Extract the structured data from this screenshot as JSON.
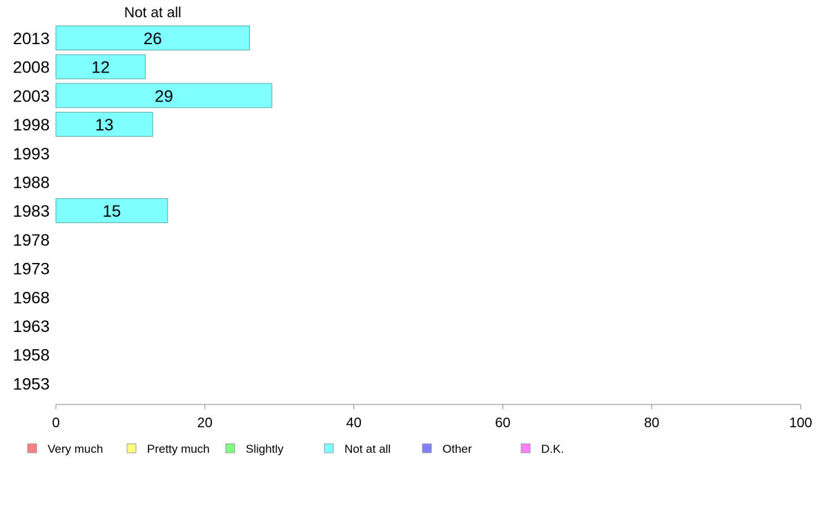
{
  "chart_data": {
    "type": "bar",
    "orientation": "horizontal",
    "stacked": true,
    "column_header": "Not at all",
    "categories": [
      "2013",
      "2008",
      "2003",
      "1998",
      "1993",
      "1988",
      "1983",
      "1978",
      "1973",
      "1968",
      "1963",
      "1958",
      "1953"
    ],
    "series": [
      {
        "name": "Very much",
        "color": "#ff8080",
        "values": [
          null,
          null,
          null,
          null,
          null,
          null,
          null,
          null,
          null,
          null,
          null,
          null,
          null
        ]
      },
      {
        "name": "Pretty much",
        "color": "#ffff80",
        "values": [
          null,
          null,
          null,
          null,
          null,
          null,
          null,
          null,
          null,
          null,
          null,
          null,
          null
        ]
      },
      {
        "name": "Slightly",
        "color": "#80ff80",
        "values": [
          null,
          null,
          null,
          null,
          null,
          null,
          null,
          null,
          null,
          null,
          null,
          null,
          null
        ]
      },
      {
        "name": "Not at all",
        "color": "#80ffff",
        "values": [
          26,
          12,
          29,
          13,
          null,
          null,
          15,
          null,
          null,
          null,
          null,
          null,
          null
        ]
      },
      {
        "name": "Other",
        "color": "#8080ff",
        "values": [
          null,
          null,
          null,
          null,
          null,
          null,
          null,
          null,
          null,
          null,
          null,
          null,
          null
        ]
      },
      {
        "name": "D.K.",
        "color": "#ff80ff",
        "values": [
          null,
          null,
          null,
          null,
          null,
          null,
          null,
          null,
          null,
          null,
          null,
          null,
          null
        ]
      }
    ],
    "xlim": [
      0,
      100
    ],
    "xticks": [
      0,
      20,
      40,
      60,
      80,
      100
    ],
    "title": "",
    "xlabel": "",
    "ylabel": "",
    "grid": false,
    "legend_position": "bottom"
  }
}
